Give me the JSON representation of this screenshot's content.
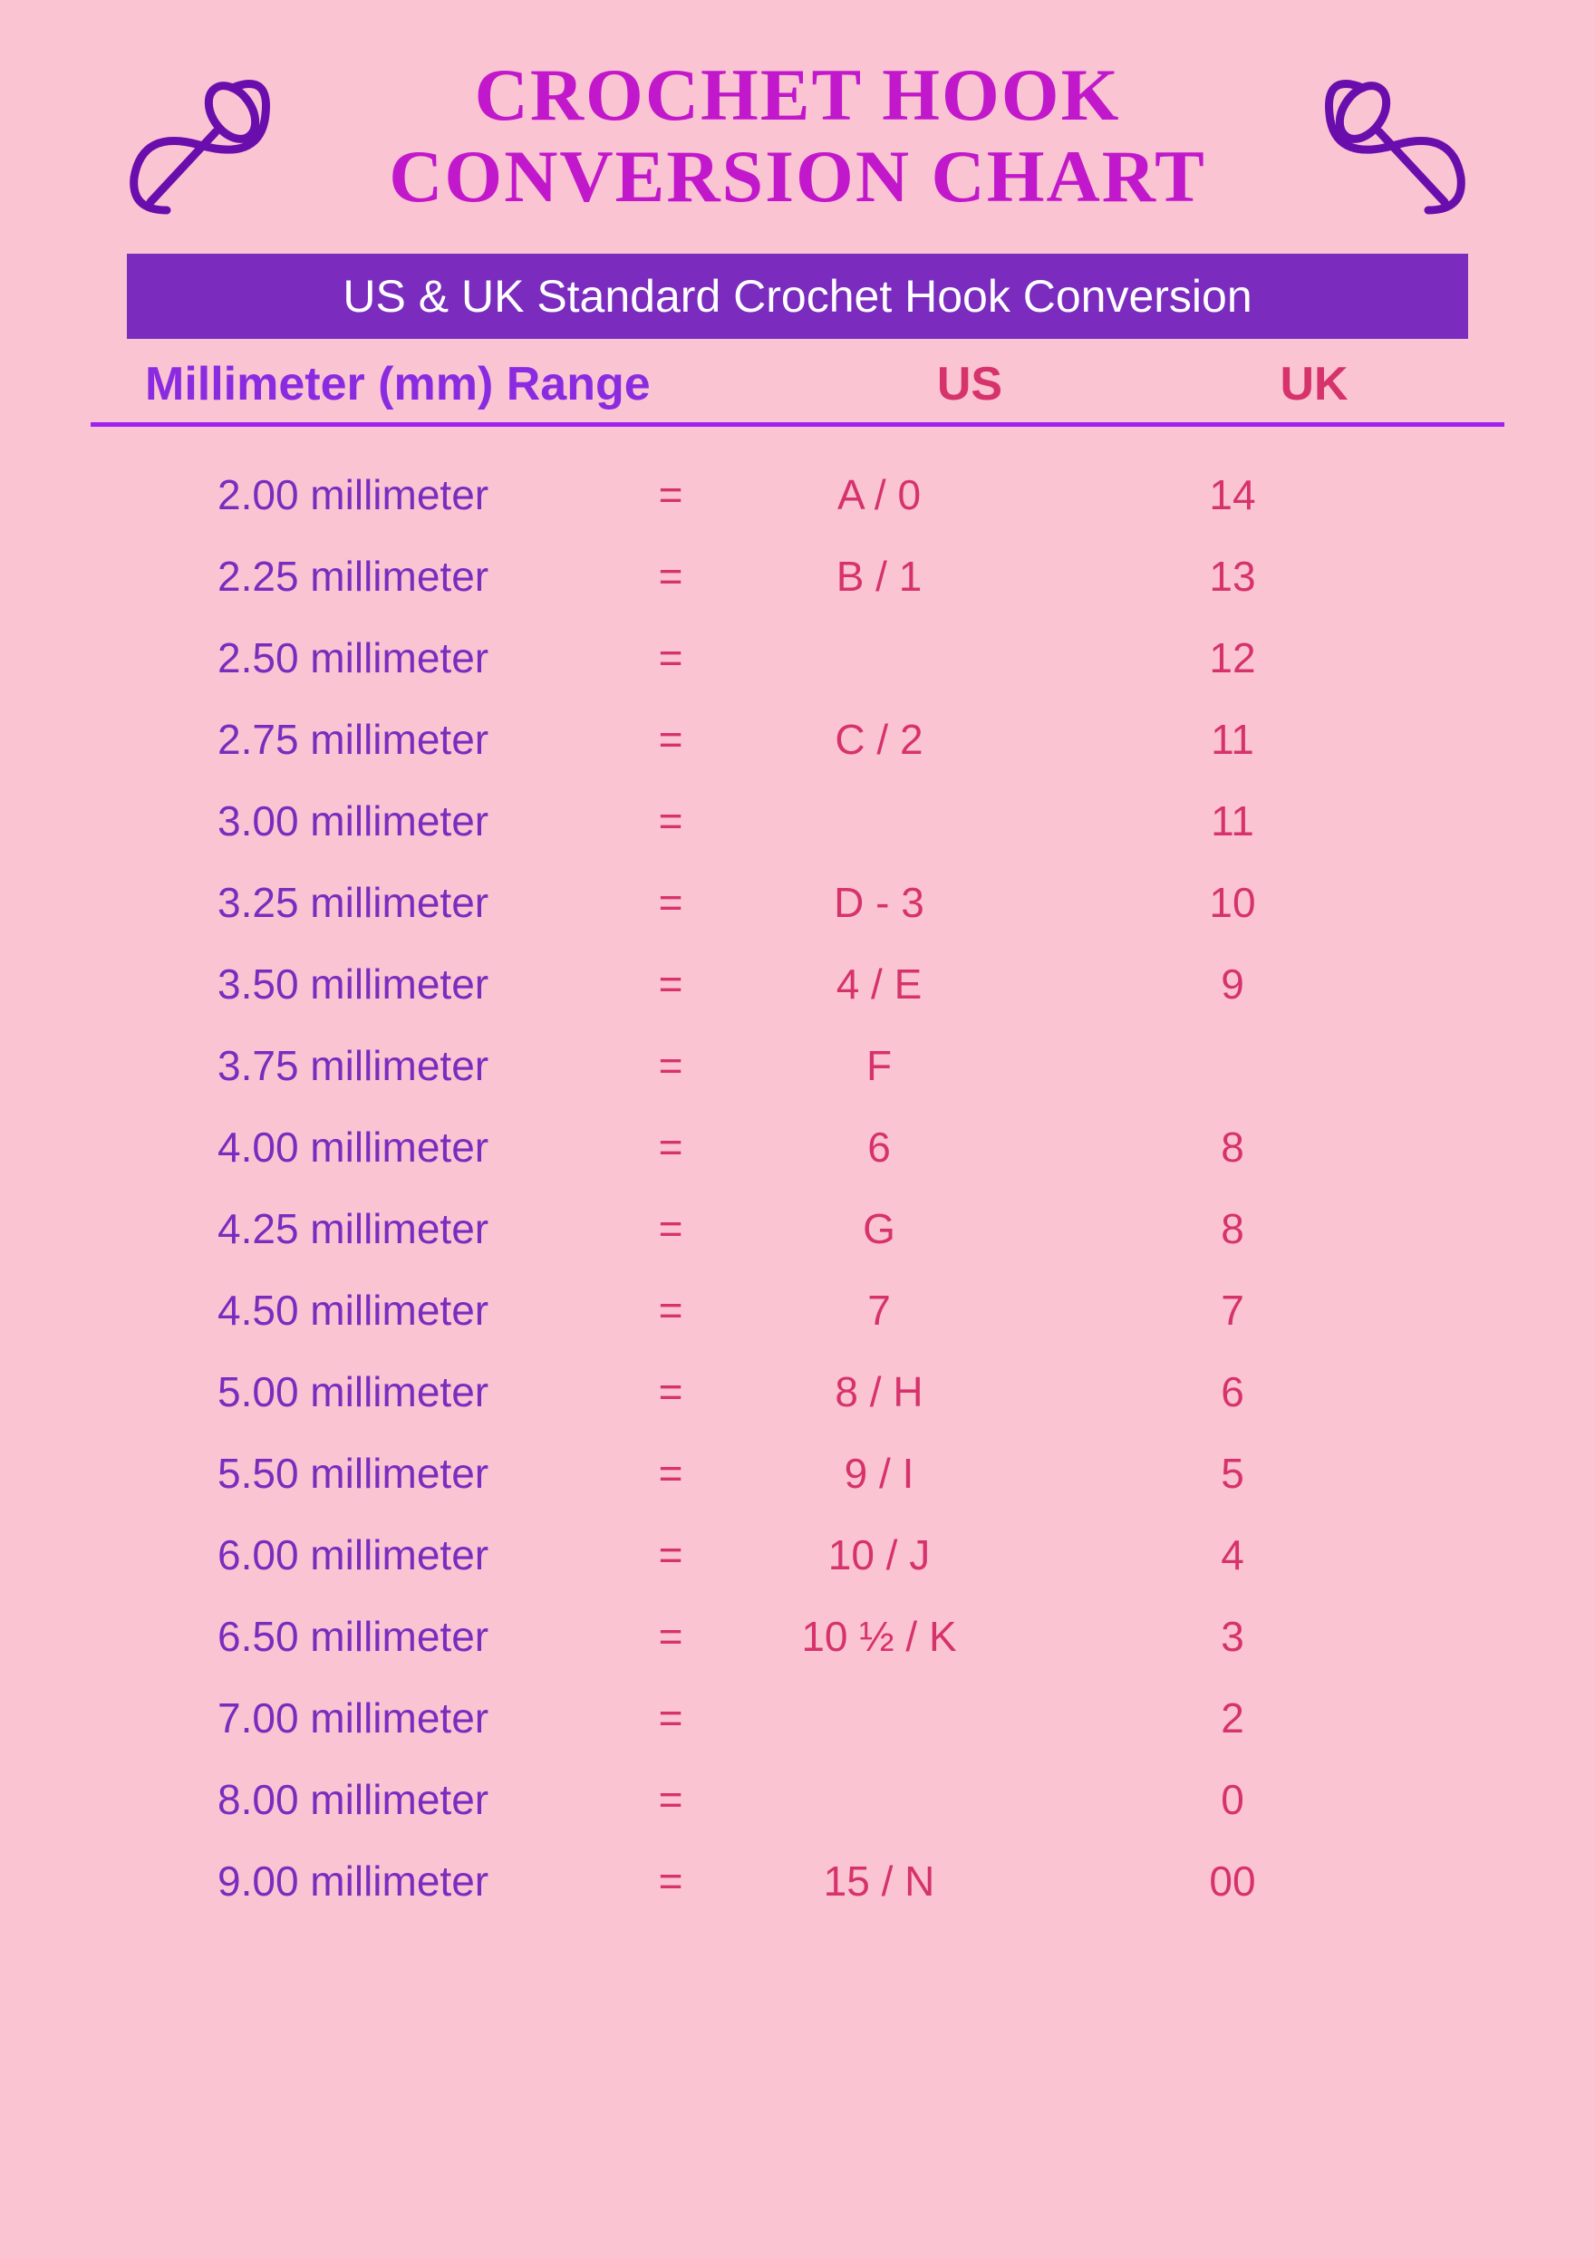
{
  "title": "CROCHET HOOK CONVERSION CHART",
  "subtitle": "US & UK Standard Crochet Hook Conversion",
  "colors": {
    "background": "#fbc4d2",
    "titleColor": "#c218cc",
    "subtitleBg": "#7b2cbf",
    "subtitleText": "#ffffff",
    "headerMm": "#8a2be2",
    "headerUsUk": "#d6336c",
    "dividerLine": "#a020f0",
    "mmText": "#7b2cbf",
    "valueText": "#d6336c",
    "iconColor": "#6a0dad"
  },
  "typography": {
    "titleFontSize": 82,
    "subtitleFontSize": 50,
    "headerFontSize": 52,
    "rowFontSize": 46
  },
  "table": {
    "type": "table",
    "columns": {
      "mm": "Millimeter (mm) Range",
      "us": "US",
      "uk": "UK"
    },
    "equalsSign": "=",
    "rows": [
      {
        "mm": "2.00 millimeter",
        "us": "A / 0",
        "uk": "14"
      },
      {
        "mm": "2.25 millimeter",
        "us": "B / 1",
        "uk": "13"
      },
      {
        "mm": "2.50 millimeter",
        "us": "",
        "uk": "12"
      },
      {
        "mm": "2.75 millimeter",
        "us": "C / 2",
        "uk": "11"
      },
      {
        "mm": "3.00 millimeter",
        "us": "",
        "uk": "11"
      },
      {
        "mm": "3.25 millimeter",
        "us": "D - 3",
        "uk": "10"
      },
      {
        "mm": "3.50 millimeter",
        "us": "4 / E",
        "uk": "9"
      },
      {
        "mm": "3.75 millimeter",
        "us": "F",
        "uk": ""
      },
      {
        "mm": "4.00 millimeter",
        "us": "6",
        "uk": "8"
      },
      {
        "mm": "4.25 millimeter",
        "us": "G",
        "uk": "8"
      },
      {
        "mm": "4.50 millimeter",
        "us": "7",
        "uk": "7"
      },
      {
        "mm": "5.00 millimeter",
        "us": "8 / H",
        "uk": "6"
      },
      {
        "mm": "5.50 millimeter",
        "us": "9 / I",
        "uk": "5"
      },
      {
        "mm": "6.00 millimeter",
        "us": "10 / J",
        "uk": "4"
      },
      {
        "mm": "6.50 millimeter",
        "us": "10 ½ / K",
        "uk": "3"
      },
      {
        "mm": "7.00 millimeter",
        "us": "",
        "uk": "2"
      },
      {
        "mm": "8.00 millimeter",
        "us": "",
        "uk": "0"
      },
      {
        "mm": "9.00 millimeter",
        "us": "15 / N",
        "uk": "00"
      }
    ]
  }
}
